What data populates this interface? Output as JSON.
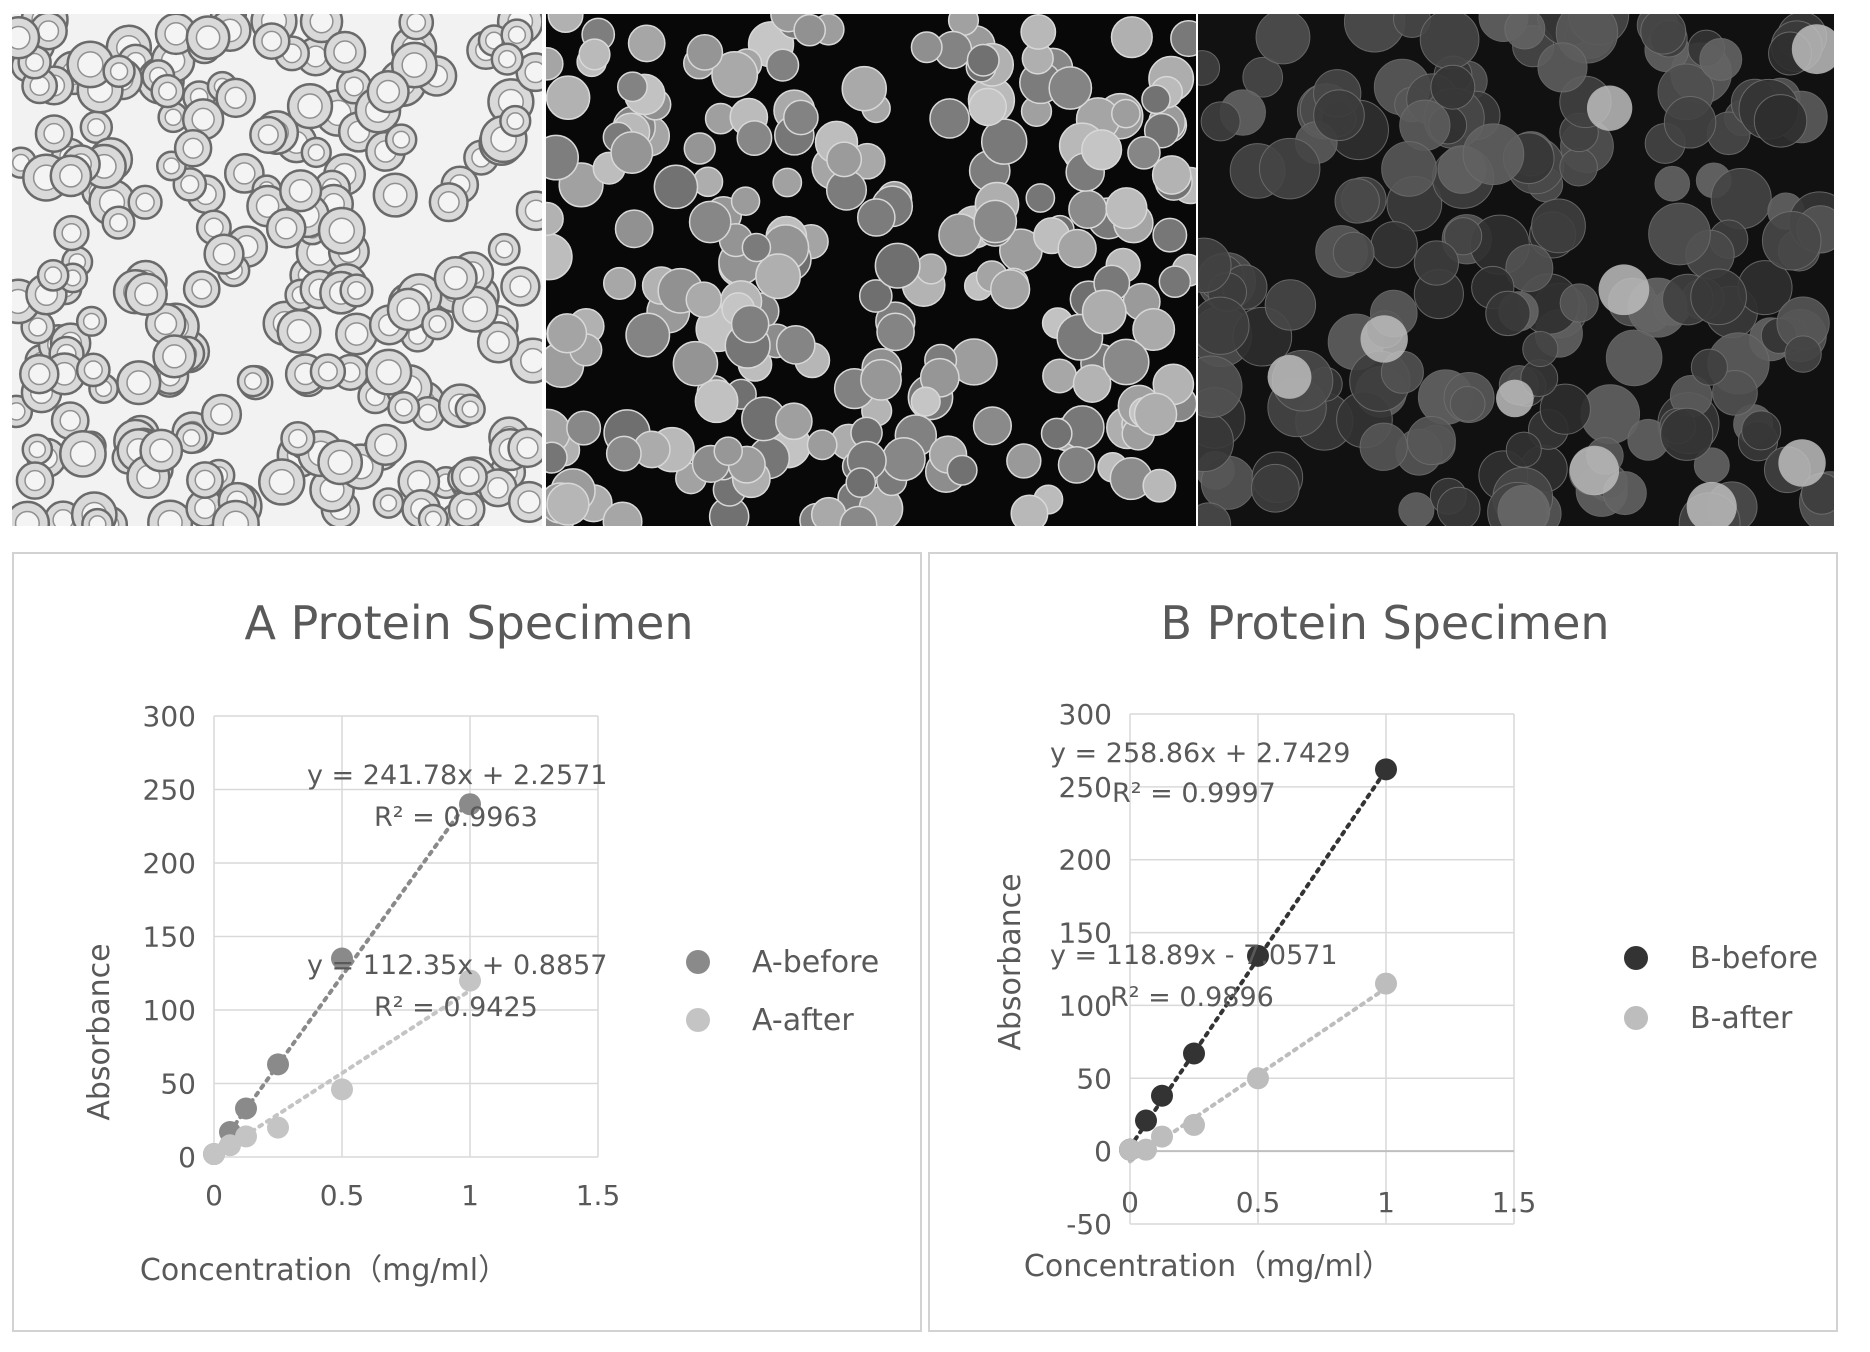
{
  "micrographs": [
    {
      "style": "brightfield",
      "background": "#f2f2f2"
    },
    {
      "style": "fluorescence",
      "background": "#080808"
    },
    {
      "style": "fluorescence-blur",
      "background": "#111111"
    }
  ],
  "chart_data": [
    {
      "type": "scatter",
      "title": "A Protein Specimen",
      "xlabel": "Concentration（mg/ml）",
      "ylabel": "Absorbance",
      "xlim": [
        0,
        1.5
      ],
      "ylim": [
        0,
        300
      ],
      "xticks": [
        "0",
        "0.5",
        "1",
        "1.5"
      ],
      "yticks": [
        "0",
        "50",
        "100",
        "150",
        "200",
        "250",
        "300"
      ],
      "grid": true,
      "legend_position": "right",
      "series": [
        {
          "name": "A-before",
          "color": "#8a8a8a",
          "x": [
            0,
            0.0625,
            0.125,
            0.25,
            0.5,
            1
          ],
          "y": [
            2,
            17,
            33,
            63,
            135,
            240
          ],
          "trendline": "y = 241.78x + 2.2571",
          "r2": "R² = 0.9963",
          "fit": {
            "slope": 241.78,
            "intercept": 2.2571
          }
        },
        {
          "name": "A-after",
          "color": "#c4c4c4",
          "x": [
            0,
            0.0625,
            0.125,
            0.25,
            0.5,
            1
          ],
          "y": [
            2,
            8,
            14,
            20,
            46,
            120
          ],
          "trendline": "y = 112.35x + 0.8857",
          "r2": "R² = 0.9425",
          "fit": {
            "slope": 112.35,
            "intercept": 0.8857
          }
        }
      ]
    },
    {
      "type": "scatter",
      "title": "B Protein Specimen",
      "xlabel": "Concentration（mg/ml）",
      "ylabel": "Absorbance",
      "xlim": [
        0,
        1.5
      ],
      "ylim": [
        -50,
        300
      ],
      "xticks": [
        "0",
        "0.5",
        "1",
        "1.5"
      ],
      "yticks": [
        "-50",
        "0",
        "50",
        "100",
        "150",
        "200",
        "250",
        "300"
      ],
      "grid": true,
      "legend_position": "right",
      "series": [
        {
          "name": "B-before",
          "color": "#333333",
          "x": [
            0,
            0.0625,
            0.125,
            0.25,
            0.5,
            1
          ],
          "y": [
            1,
            21,
            38,
            67,
            134,
            262
          ],
          "trendline": "y = 258.86x + 2.7429",
          "r2": "R² = 0.9997",
          "fit": {
            "slope": 258.86,
            "intercept": 2.7429
          }
        },
        {
          "name": "B-after",
          "color": "#bdbdbd",
          "x": [
            0,
            0.0625,
            0.125,
            0.25,
            0.5,
            1
          ],
          "y": [
            1,
            1,
            10,
            18,
            50,
            115
          ],
          "trendline": "y = 118.89x - 7.0571",
          "r2": "R² = 0.9896",
          "fit": {
            "slope": 118.89,
            "intercept": -7.0571
          }
        }
      ]
    }
  ]
}
